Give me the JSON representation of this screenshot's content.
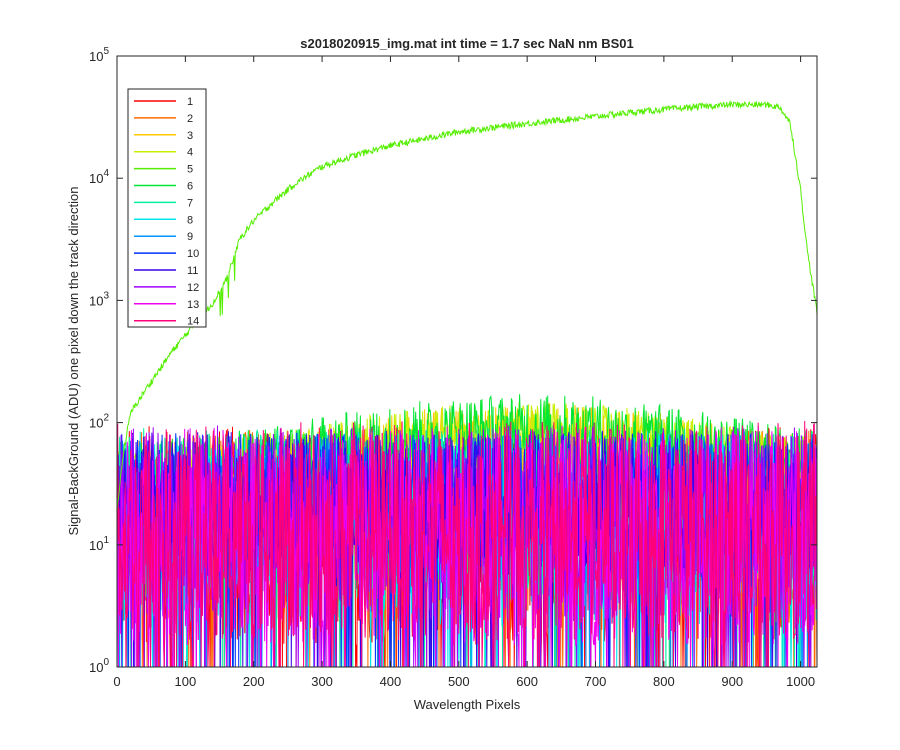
{
  "chart_data": {
    "type": "line",
    "title": "s2018020915_img.mat int time = 1.7 sec  NaN nm BS01",
    "xlabel": "Wavelength Pixels",
    "ylabel": "Signal-BackGround (ADU) one pixel down the track direction",
    "xlim": [
      0,
      1024
    ],
    "ylim": [
      1,
      100000
    ],
    "yscale": "log",
    "grid": false,
    "legend_position": "top-left",
    "x_ticks": [
      0,
      100,
      200,
      300,
      400,
      500,
      600,
      700,
      800,
      900,
      1000
    ],
    "y_ticks": [
      1,
      10,
      100,
      1000,
      10000,
      100000
    ],
    "y_tick_base": "10",
    "y_tick_exponents": [
      "0",
      "1",
      "2",
      "3",
      "4",
      "5"
    ],
    "series": [
      {
        "name": "1",
        "color": "#ff0000",
        "level": 12,
        "noise": 0.9
      },
      {
        "name": "2",
        "color": "#ff6a00",
        "level": 14,
        "noise": 0.8
      },
      {
        "name": "3",
        "color": "#ffc800",
        "level": 45,
        "noise": 0.35,
        "hump": true
      },
      {
        "name": "4",
        "color": "#c8f000",
        "level": 52,
        "noise": 0.3,
        "hump": true
      },
      {
        "name": "5",
        "color": "#55ee00",
        "level": 0,
        "noise": 0.05,
        "bright": true,
        "profile_x": [
          0,
          10,
          20,
          40,
          60,
          80,
          100,
          120,
          140,
          160,
          180,
          200,
          230,
          260,
          300,
          350,
          400,
          450,
          500,
          550,
          600,
          650,
          700,
          750,
          800,
          850,
          900,
          950,
          970,
          985,
          1000,
          1010,
          1024
        ],
        "profile_y": [
          20,
          60,
          120,
          180,
          260,
          380,
          520,
          700,
          950,
          1500,
          3200,
          4500,
          6500,
          9000,
          12500,
          15500,
          18500,
          21000,
          24000,
          26000,
          28000,
          30000,
          32000,
          34500,
          36500,
          38500,
          40000,
          40000,
          38000,
          28000,
          8000,
          2500,
          800
        ]
      },
      {
        "name": "6",
        "color": "#00e632",
        "level": 60,
        "noise": 0.3,
        "hump": true
      },
      {
        "name": "7",
        "color": "#00f0a0",
        "level": 18,
        "noise": 0.7
      },
      {
        "name": "8",
        "color": "#00e6f0",
        "level": 14,
        "noise": 0.8
      },
      {
        "name": "9",
        "color": "#0096ff",
        "level": 20,
        "noise": 0.6
      },
      {
        "name": "10",
        "color": "#0032ff",
        "level": 26,
        "noise": 0.5
      },
      {
        "name": "11",
        "color": "#3c00e6",
        "level": 22,
        "noise": 0.6
      },
      {
        "name": "12",
        "color": "#a000ff",
        "level": 15,
        "noise": 0.8
      },
      {
        "name": "13",
        "color": "#f000f0",
        "level": 12,
        "noise": 0.9
      },
      {
        "name": "14",
        "color": "#ff0078",
        "level": 13,
        "noise": 0.9
      }
    ]
  }
}
